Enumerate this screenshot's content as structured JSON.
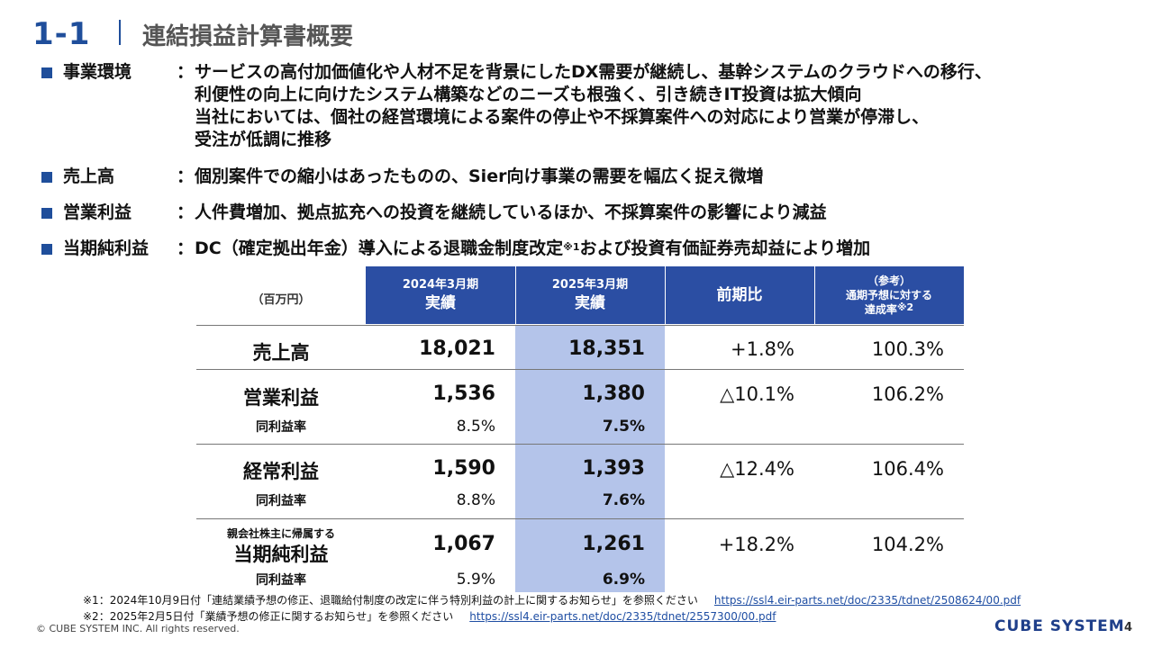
{
  "header": {
    "section_number": "1-1",
    "title": "連結損益計算書概要"
  },
  "bullets": [
    {
      "label": "事業環境",
      "colon": "：",
      "lines": [
        "サービスの高付加価値化や人材不足を背景にしたDX需要が継続し、基幹システムのクラウドへの移行、",
        "利便性の向上に向けたシステム構築などのニーズも根強く、引き続きIT投資は拡大傾向",
        "当社においては、個社の経営環境による案件の停止や不採算案件への対応により営業が停滞し、",
        "受注が低調に推移"
      ]
    },
    {
      "label": "売上高",
      "colon": "：",
      "lines": [
        "個別案件での縮小はあったものの、Sier向け事業の需要を幅広く捉え微増"
      ]
    },
    {
      "label": "営業利益",
      "colon": "：",
      "lines": [
        "人件費増加、拠点拡充への投資を継続しているほか、不採算案件の影響により減益"
      ]
    },
    {
      "label": "当期純利益",
      "colon": "：",
      "text_a": "DC（確定拠出年金）導入による退職金制度改定",
      "sup": "※1",
      "text_b": "および投資有価証券売却益により増加"
    }
  ],
  "table": {
    "unit": "（百万円）",
    "col_2024": {
      "period": "2024年3月期",
      "label": "実績"
    },
    "col_2025": {
      "period": "2025年3月期",
      "label": "実績"
    },
    "col_yoy": "前期比",
    "col_ref": {
      "line1": "（参考）",
      "line2": "通期予想に対する",
      "line3": "達成率",
      "sup": "※2"
    },
    "margin_label": "同利益率",
    "rows": {
      "sales": {
        "label": "売上高",
        "v2024": "18,021",
        "v2025": "18,351",
        "yoy": "+1.8%",
        "ach": "100.3%"
      },
      "op": {
        "label": "営業利益",
        "v2024": "1,536",
        "v2025": "1,380",
        "yoy": "△10.1%",
        "ach": "106.2%",
        "m2024": "8.5%",
        "m2025": "7.5%"
      },
      "ord": {
        "label": "経常利益",
        "v2024": "1,590",
        "v2025": "1,393",
        "yoy": "△12.4%",
        "ach": "106.4%",
        "m2024": "8.8%",
        "m2025": "7.6%"
      },
      "net": {
        "label_small": "親会社株主に帰属する",
        "label": "当期純利益",
        "v2024": "1,067",
        "v2025": "1,261",
        "yoy": "+18.2%",
        "ach": "104.2%",
        "m2024": "5.9%",
        "m2025": "6.9%"
      }
    }
  },
  "footnotes": [
    {
      "text": "※1：2024年10月9日付「連結業績予想の修正、退職給付制度の改定に伴う特別利益の計上に関するお知らせ」を参照ください",
      "url": "https://ssl4.eir-parts.net/doc/2335/tdnet/2508624/00.pdf"
    },
    {
      "text": "※2：2025年2月5日付「業績予想の修正に関するお知らせ」を参照ください",
      "url": "https://ssl4.eir-parts.net/doc/2335/tdnet/2557300/00.pdf"
    }
  ],
  "footer": {
    "copyright": "© CUBE SYSTEM INC. All rights reserved.",
    "logo": "CUBE SYSTEM",
    "page": "4"
  }
}
